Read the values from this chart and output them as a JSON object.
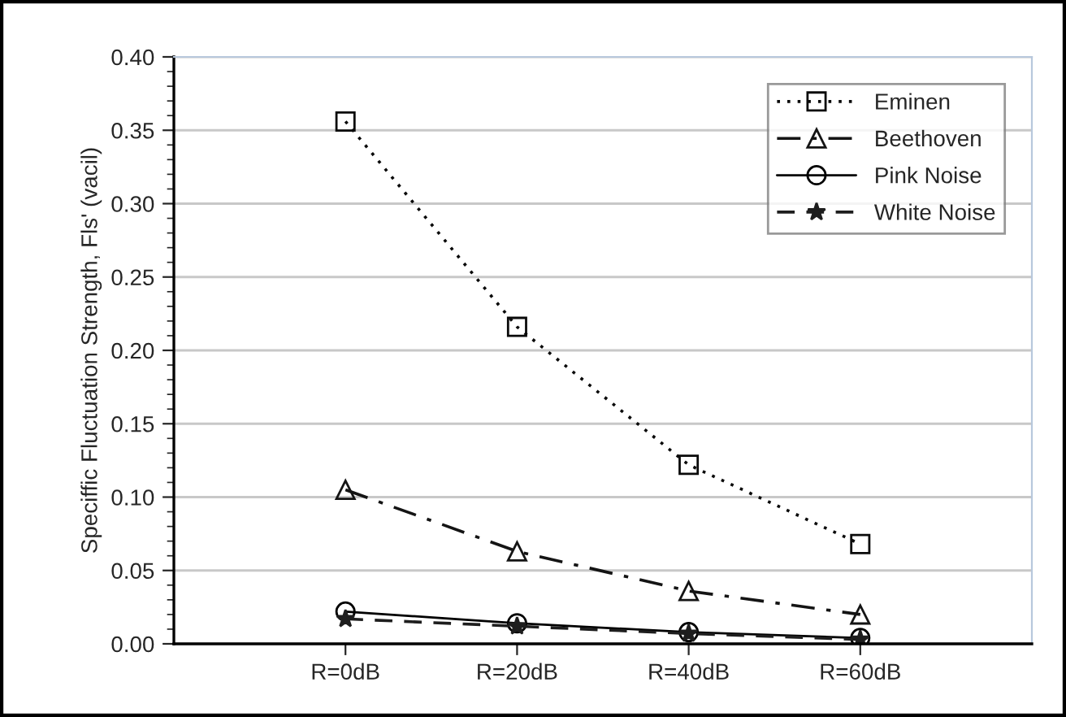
{
  "chart_data": {
    "type": "line",
    "ylabel": "Speciffic Fluctuation Strength, Fls' (vacil)",
    "categories": [
      "R=0dB",
      "R=20dB",
      "R=40dB",
      "R=60dB"
    ],
    "series": [
      {
        "name": "Eminen",
        "color": "#0a0a0a",
        "values": [
          0.356,
          0.216,
          0.122,
          0.068
        ],
        "marker": "square",
        "line_style": "dotted"
      },
      {
        "name": "Beethoven",
        "color": "#141414",
        "values": [
          0.105,
          0.063,
          0.036,
          0.02
        ],
        "marker": "triangle",
        "line_style": "dashdot"
      },
      {
        "name": "Pink Noise",
        "color": "#000000",
        "values": [
          0.022,
          0.014,
          0.008,
          0.004
        ],
        "marker": "circle",
        "line_style": "solid"
      },
      {
        "name": "White Noise",
        "color": "#1e1e1e",
        "values": [
          0.017,
          0.012,
          0.007,
          0.003
        ],
        "marker": "star",
        "line_style": "dashed"
      }
    ],
    "ylim": [
      0,
      0.4
    ],
    "yticks": [
      {
        "value": 0,
        "label": "0.00"
      },
      {
        "value": 0.05,
        "label": "0.05"
      },
      {
        "value": 0.1,
        "label": "0.10"
      },
      {
        "value": 0.15,
        "label": "0.15"
      },
      {
        "value": 0.2,
        "label": "0.20"
      },
      {
        "value": 0.25,
        "label": "0.25"
      },
      {
        "value": 0.3,
        "label": "0.30"
      },
      {
        "value": 0.35,
        "label": "0.35"
      },
      {
        "value": 0.4,
        "label": "0.40"
      }
    ],
    "grid": "y",
    "legend": "top right"
  }
}
